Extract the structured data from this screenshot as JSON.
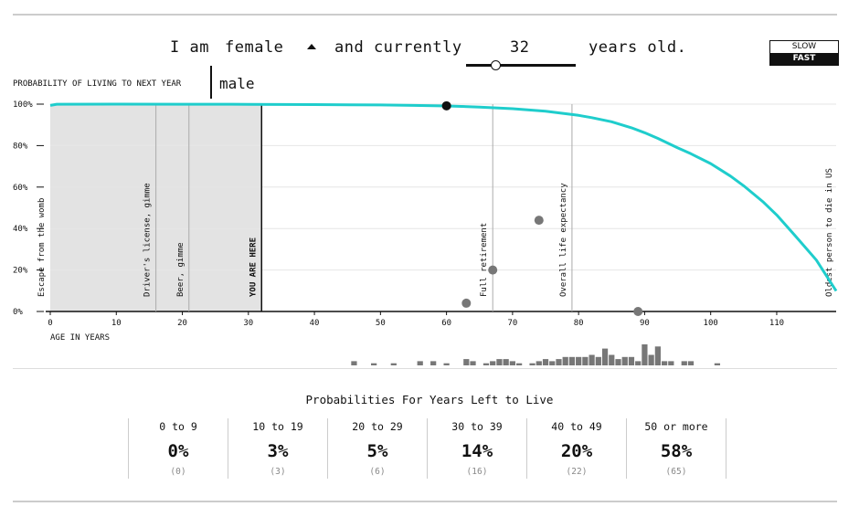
{
  "header": {
    "word_i_am": "I am",
    "sex_selected": "female",
    "sex_option_other": "male",
    "word_and_currently": "and currently",
    "age_value": "32",
    "word_years_old": "years old.",
    "speed_slow": "SLOW",
    "speed_fast": "FAST"
  },
  "chart_title": "PROBABILITY OF LIVING TO NEXT YEAR",
  "x_axis_label": "AGE IN YEARS",
  "colors": {
    "curve": "#1fcdcc",
    "shade": "#e3e3e3",
    "dot": "#777777",
    "histogram": "#777777"
  },
  "chart_data": {
    "type": "line",
    "xlim": [
      0,
      119
    ],
    "ylim": [
      0,
      100
    ],
    "x_ticks": [
      0,
      10,
      20,
      30,
      40,
      50,
      60,
      70,
      80,
      90,
      100,
      110
    ],
    "y_ticks": [
      0,
      20,
      40,
      60,
      80,
      100
    ],
    "y_tick_labels": [
      "0%",
      "20%",
      "40%",
      "60%",
      "80%",
      "100%"
    ],
    "curve": {
      "x": [
        0,
        1,
        10,
        20,
        30,
        40,
        50,
        55,
        60,
        65,
        70,
        75,
        80,
        82,
        85,
        88,
        90,
        92,
        95,
        97,
        100,
        103,
        105,
        108,
        110,
        113,
        116,
        119
      ],
      "y": [
        99.4,
        99.95,
        99.99,
        99.95,
        99.9,
        99.8,
        99.6,
        99.4,
        99.1,
        98.6,
        97.8,
        96.6,
        94.6,
        93.5,
        91.5,
        88.6,
        86.2,
        83.5,
        78.9,
        76.1,
        71.3,
        65.3,
        60.6,
        52.7,
        46.5,
        35.8,
        24.8,
        9.9
      ]
    },
    "current_age": 32,
    "current_point": {
      "x": 60,
      "y": 99.2
    },
    "milestones": [
      {
        "age": 0,
        "label": "Escape from the womb"
      },
      {
        "age": 16,
        "label": "Driver's license, gimme"
      },
      {
        "age": 21,
        "label": "Beer, gimme"
      },
      {
        "age": 32,
        "label": "YOU ARE HERE"
      },
      {
        "age": 67,
        "label": "Full retirement"
      },
      {
        "age": 79,
        "label": "Overall life expectancy"
      },
      {
        "age": 119,
        "label": "Oldest person to die in US"
      }
    ],
    "scatter_points": [
      {
        "x": 63,
        "y": 4
      },
      {
        "x": 67,
        "y": 20
      },
      {
        "x": 74,
        "y": 44
      },
      {
        "x": 89,
        "y": 0
      }
    ],
    "histogram": [
      {
        "age": 46,
        "count": 2
      },
      {
        "age": 49,
        "count": 1
      },
      {
        "age": 52,
        "count": 1
      },
      {
        "age": 56,
        "count": 2
      },
      {
        "age": 58,
        "count": 2
      },
      {
        "age": 60,
        "count": 1
      },
      {
        "age": 63,
        "count": 3
      },
      {
        "age": 64,
        "count": 2
      },
      {
        "age": 66,
        "count": 1
      },
      {
        "age": 67,
        "count": 2
      },
      {
        "age": 68,
        "count": 3
      },
      {
        "age": 69,
        "count": 3
      },
      {
        "age": 70,
        "count": 2
      },
      {
        "age": 71,
        "count": 1
      },
      {
        "age": 73,
        "count": 1
      },
      {
        "age": 74,
        "count": 2
      },
      {
        "age": 75,
        "count": 3
      },
      {
        "age": 76,
        "count": 2
      },
      {
        "age": 77,
        "count": 3
      },
      {
        "age": 78,
        "count": 4
      },
      {
        "age": 79,
        "count": 4
      },
      {
        "age": 80,
        "count": 4
      },
      {
        "age": 81,
        "count": 4
      },
      {
        "age": 82,
        "count": 5
      },
      {
        "age": 83,
        "count": 4
      },
      {
        "age": 84,
        "count": 8
      },
      {
        "age": 85,
        "count": 5
      },
      {
        "age": 86,
        "count": 3
      },
      {
        "age": 87,
        "count": 4
      },
      {
        "age": 88,
        "count": 4
      },
      {
        "age": 89,
        "count": 2
      },
      {
        "age": 90,
        "count": 10
      },
      {
        "age": 91,
        "count": 5
      },
      {
        "age": 92,
        "count": 9
      },
      {
        "age": 93,
        "count": 2
      },
      {
        "age": 94,
        "count": 2
      },
      {
        "age": 96,
        "count": 2
      },
      {
        "age": 97,
        "count": 2
      },
      {
        "age": 101,
        "count": 1
      }
    ]
  },
  "summary": {
    "title": "Probabilities For Years Left to Live",
    "cells": [
      {
        "range": "0 to 9",
        "percent": "0%",
        "count": "(0)"
      },
      {
        "range": "10 to 19",
        "percent": "3%",
        "count": "(3)"
      },
      {
        "range": "20 to 29",
        "percent": "5%",
        "count": "(6)"
      },
      {
        "range": "30 to 39",
        "percent": "14%",
        "count": "(16)"
      },
      {
        "range": "40 to 49",
        "percent": "20%",
        "count": "(22)"
      },
      {
        "range": "50 or more",
        "percent": "58%",
        "count": "(65)"
      }
    ]
  }
}
